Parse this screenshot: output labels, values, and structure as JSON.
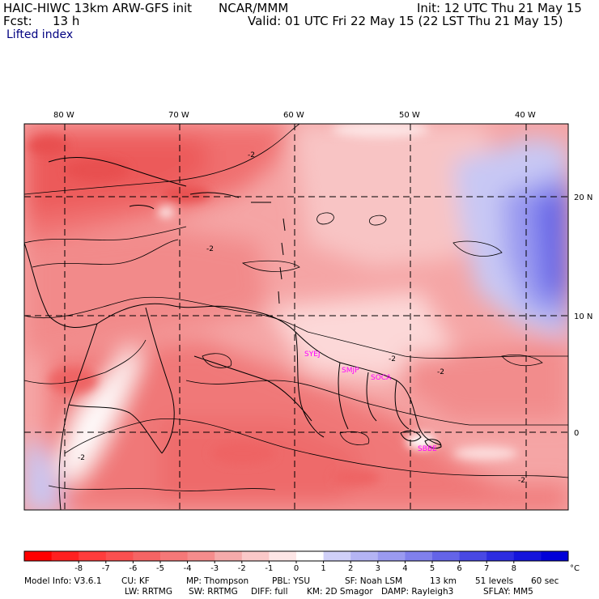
{
  "header": {
    "title_left": "HAIC-HIWC 13km ARW-GFS init",
    "center": "NCAR/MMM",
    "init": "Init: 12 UTC Thu 21 May 15",
    "fcst_label": "Fcst:",
    "fcst_value": "13 h",
    "valid": "Valid: 01 UTC Fri 22 May 15 (22 LST Thu 21 May 15)",
    "field": "Lifted index"
  },
  "map": {
    "lon_labels": [
      "80 W",
      "70 W",
      "60 W",
      "50 W",
      "40 W"
    ],
    "lat_labels": [
      "20 N",
      "10 N",
      "0"
    ],
    "contour_labels": [
      "-2",
      "-2",
      "-2",
      "-2",
      "-2",
      "-2"
    ],
    "stations": [
      "SYEJ",
      "SMJP",
      "SOCA",
      "SBBE"
    ],
    "colors": {
      "grid": "#000000",
      "coast": "#000000",
      "station": "#ff00ff"
    }
  },
  "colorbar": {
    "colors": [
      "#ff0000",
      "#ff2020",
      "#ff3c3c",
      "#fa5050",
      "#f56464",
      "#f57878",
      "#f58c8c",
      "#f5aaaa",
      "#fac8c8",
      "#fde6e6",
      "#ffffff",
      "#d0d0f8",
      "#b4b4f4",
      "#9a9af0",
      "#8080ec",
      "#6464e8",
      "#4848e4",
      "#2c2ce0",
      "#1414dc",
      "#0000d8"
    ],
    "labels": [
      "-8",
      "-7",
      "-6",
      "-5",
      "-4",
      "-3",
      "-2",
      "-1",
      "0",
      "1",
      "2",
      "3",
      "4",
      "5",
      "6",
      "7",
      "8"
    ],
    "unit": "°C"
  },
  "footer": {
    "line1": [
      "Model Info: V3.6.1",
      "CU: KF",
      "MP: Thompson",
      "PBL: YSU",
      "SF: Noah LSM",
      "13 km",
      "51 levels",
      "60 sec"
    ],
    "line2": [
      "LW: RRTMG",
      "SW: RRTMG",
      "DIFF: full",
      "KM: 2D Smagor",
      "DAMP: Rayleigh3",
      "SFLAY: MM5"
    ]
  }
}
